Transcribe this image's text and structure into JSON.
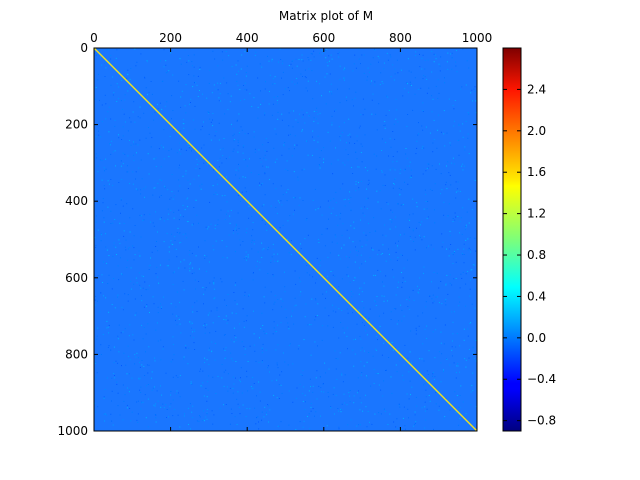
{
  "chart_data": {
    "type": "heatmap",
    "title": "Matrix plot of M",
    "xlabel": "",
    "ylabel": "",
    "matrix_shape": [
      1000,
      1000
    ],
    "x_ticks": [
      0,
      200,
      400,
      600,
      800,
      1000
    ],
    "y_ticks": [
      0,
      200,
      400,
      600,
      800,
      1000
    ],
    "xlim": [
      0,
      1000
    ],
    "ylim": [
      1000,
      0
    ],
    "x_axis_position": "top",
    "grid": false,
    "colormap": "jet",
    "background_value": 0.05,
    "background_noise": 0.08,
    "diagonal_value": 1.6,
    "colorbar": {
      "range": [
        -0.9,
        2.8
      ],
      "ticks": [
        -0.8,
        -0.4,
        0.0,
        0.4,
        0.8,
        1.2,
        1.6,
        2.0,
        2.4
      ],
      "tick_labels": [
        "−0.8",
        "−0.4",
        "0.0",
        "0.4",
        "0.8",
        "1.2",
        "1.6",
        "2.0",
        "2.4"
      ],
      "position": "right"
    }
  },
  "colors": {
    "background_cell": "#1a76ff",
    "diagonal": "#f2e21c",
    "axis": "#000000",
    "figure_background": "#ffffff"
  }
}
